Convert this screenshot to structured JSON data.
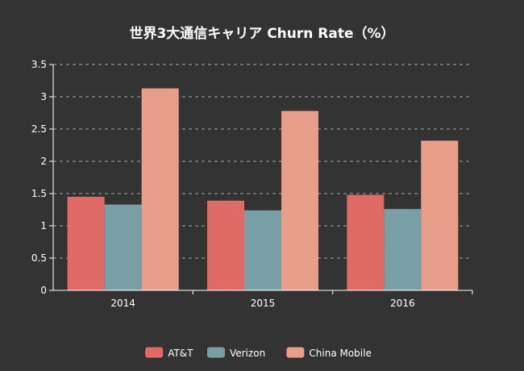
{
  "chart_data": {
    "type": "bar",
    "title": "世界3大通信キャリア Churn Rate（%）",
    "xlabel": "",
    "ylabel": "",
    "categories": [
      "2014",
      "2015",
      "2016"
    ],
    "series": [
      {
        "name": "AT&T",
        "color": "#e06b66",
        "values": [
          1.45,
          1.39,
          1.48
        ]
      },
      {
        "name": "Verizon",
        "color": "#789fa6",
        "values": [
          1.33,
          1.24,
          1.26
        ]
      },
      {
        "name": "China Mobile",
        "color": "#e89e88",
        "values": [
          3.13,
          2.78,
          2.32
        ]
      }
    ],
    "ylim": [
      0,
      3.5
    ],
    "yticks": [
      "0",
      "0.5",
      "1",
      "1.5",
      "2",
      "2.5",
      "3",
      "3.5"
    ],
    "grid": true,
    "legend_position": "bottom"
  }
}
